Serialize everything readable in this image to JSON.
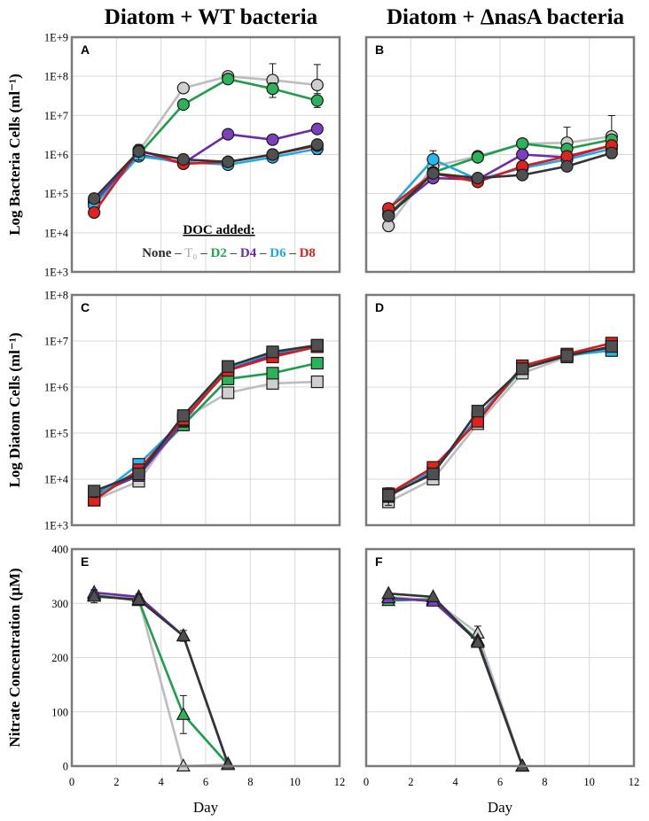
{
  "figure": {
    "column_titles": [
      "Diatom + WT bacteria",
      "Diatom + ΔnasA bacteria"
    ],
    "legend": {
      "title": "DOC added:",
      "entries": [
        {
          "label": "None",
          "color": "#2b2b2b"
        },
        {
          "label": "T₀",
          "color": "#a6a6a6",
          "plain": true
        },
        {
          "label": "D2",
          "color": "#21a84f"
        },
        {
          "label": "D4",
          "color": "#6a2da8"
        },
        {
          "label": "D6",
          "color": "#1fa9e1"
        },
        {
          "label": "D8",
          "color": "#e0221f"
        }
      ],
      "separator": " – "
    },
    "series_colors": {
      "None": {
        "line": "#333333",
        "fill": "#505050"
      },
      "T0": {
        "line": "#bdbdbd",
        "fill": "#cfcfcf"
      },
      "D2": {
        "line": "#1e9e4a",
        "fill": "#2cb35a"
      },
      "D4": {
        "line": "#6a2da8",
        "fill": "#7b3fbf"
      },
      "D6": {
        "line": "#1fa9e1",
        "fill": "#2bb6ee"
      },
      "D8": {
        "line": "#d7191c",
        "fill": "#e0221f"
      }
    }
  },
  "chart_data": [
    {
      "id": "A",
      "type": "line",
      "marker": "circle",
      "yscale": "log",
      "ylabel": "Log Bacteria Cells (ml⁻¹)",
      "xlabel": "",
      "xlim": [
        0,
        12
      ],
      "ylim": [
        1000,
        1000000000
      ],
      "yticklabels": [
        "1E+3",
        "1E+4",
        "1E+5",
        "1E+6",
        "1E+7",
        "1E+8",
        "1E+9"
      ],
      "xticklabels": [],
      "series": [
        {
          "name": "T0",
          "x": [
            1,
            3,
            5,
            7,
            9,
            11
          ],
          "y": [
            70000,
            1200000,
            50000000,
            100000000,
            80000000,
            60000000
          ],
          "err": [
            0,
            0,
            0,
            0,
            130000000,
            140000000
          ]
        },
        {
          "name": "D2",
          "x": [
            1,
            3,
            5,
            7,
            9,
            11
          ],
          "y": [
            60000,
            1000000,
            19000000,
            85000000,
            48000000,
            24000000
          ],
          "err": [
            0,
            0,
            0,
            0,
            20000000,
            8000000
          ]
        },
        {
          "name": "D4",
          "x": [
            1,
            3,
            5,
            7,
            9,
            11
          ],
          "y": [
            60000,
            1000000,
            600000,
            3300000,
            2400000,
            4500000
          ],
          "err": [
            0,
            0,
            0,
            0,
            0,
            0
          ]
        },
        {
          "name": "D6",
          "x": [
            1,
            3,
            5,
            7,
            9,
            11
          ],
          "y": [
            50000,
            900000,
            650000,
            550000,
            850000,
            1400000
          ],
          "err": [
            0,
            0,
            0,
            0,
            0,
            400000
          ]
        },
        {
          "name": "D8",
          "x": [
            1,
            3,
            5,
            7,
            9,
            11
          ],
          "y": [
            33000,
            1300000,
            580000,
            650000,
            1000000,
            1700000
          ],
          "err": [
            0,
            0,
            0,
            0,
            0,
            0
          ]
        },
        {
          "name": "None",
          "x": [
            1,
            3,
            5,
            7,
            9,
            11
          ],
          "y": [
            75000,
            1200000,
            750000,
            650000,
            1000000,
            1800000
          ],
          "err": [
            0,
            600000,
            0,
            0,
            0,
            0
          ]
        }
      ]
    },
    {
      "id": "B",
      "type": "line",
      "marker": "circle",
      "yscale": "log",
      "ylabel": "",
      "xlabel": "",
      "xlim": [
        0,
        12
      ],
      "ylim": [
        1000,
        1000000000
      ],
      "yticklabels": [],
      "xticklabels": [],
      "series": [
        {
          "name": "T0",
          "x": [
            1,
            3,
            5,
            7,
            9,
            11
          ],
          "y": [
            15000,
            500000,
            900000,
            1900000,
            2000000,
            2900000
          ],
          "err": [
            4000,
            0,
            0,
            0,
            3000000,
            7000000
          ]
        },
        {
          "name": "D2",
          "x": [
            1,
            3,
            5,
            7,
            9,
            11
          ],
          "y": [
            30000,
            350000,
            850000,
            1900000,
            1400000,
            2400000
          ],
          "err": [
            0,
            0,
            0,
            0,
            0,
            0
          ]
        },
        {
          "name": "D4",
          "x": [
            1,
            3,
            5,
            7,
            9,
            11
          ],
          "y": [
            30000,
            250000,
            230000,
            1000000,
            850000,
            1700000
          ],
          "err": [
            0,
            0,
            0,
            0,
            0,
            0
          ]
        },
        {
          "name": "D6",
          "x": [
            1,
            3,
            5,
            7,
            9,
            11
          ],
          "y": [
            40000,
            750000,
            230000,
            450000,
            750000,
            1400000
          ],
          "err": [
            0,
            500000,
            0,
            0,
            0,
            0
          ]
        },
        {
          "name": "D8",
          "x": [
            1,
            3,
            5,
            7,
            9,
            11
          ],
          "y": [
            42000,
            330000,
            200000,
            500000,
            900000,
            1700000
          ],
          "err": [
            0,
            0,
            0,
            0,
            0,
            0
          ]
        },
        {
          "name": "None",
          "x": [
            1,
            3,
            5,
            7,
            9,
            11
          ],
          "y": [
            27000,
            330000,
            250000,
            300000,
            500000,
            1100000
          ],
          "err": [
            0,
            0,
            0,
            0,
            0,
            300000
          ]
        }
      ]
    },
    {
      "id": "C",
      "type": "line",
      "marker": "square",
      "yscale": "log",
      "ylabel": "Log Diatom Cells (ml⁻¹)",
      "xlabel": "",
      "xlim": [
        0,
        12
      ],
      "ylim": [
        1000,
        100000000
      ],
      "yticklabels": [
        "1E+3",
        "1E+4",
        "1E+5",
        "1E+6",
        "1E+7",
        "1E+8"
      ],
      "xticklabels": [],
      "series": [
        {
          "name": "T0",
          "x": [
            1,
            3,
            5,
            7,
            9,
            11
          ],
          "y": [
            3500,
            9000,
            200000,
            750000,
            1200000,
            1300000
          ],
          "err": [
            0,
            2000,
            0,
            0,
            0,
            0
          ]
        },
        {
          "name": "D2",
          "x": [
            1,
            3,
            5,
            7,
            9,
            11
          ],
          "y": [
            4500,
            15000,
            150000,
            1500000,
            2000000,
            3300000
          ],
          "err": [
            0,
            0,
            0,
            0,
            0,
            0
          ]
        },
        {
          "name": "D4",
          "x": [
            1,
            3,
            5,
            7,
            9,
            11
          ],
          "y": [
            4500,
            12000,
            180000,
            2500000,
            5000000,
            8000000
          ],
          "err": [
            0,
            0,
            0,
            0,
            0,
            0
          ]
        },
        {
          "name": "D6",
          "x": [
            1,
            3,
            5,
            7,
            9,
            11
          ],
          "y": [
            3800,
            21000,
            190000,
            2600000,
            5500000,
            7800000
          ],
          "err": [
            0,
            0,
            0,
            0,
            0,
            0
          ]
        },
        {
          "name": "D8",
          "x": [
            1,
            3,
            5,
            7,
            9,
            11
          ],
          "y": [
            3500,
            16000,
            200000,
            2300000,
            4500000,
            7500000
          ],
          "err": [
            0,
            0,
            0,
            0,
            0,
            0
          ]
        },
        {
          "name": "None",
          "x": [
            1,
            3,
            5,
            7,
            9,
            11
          ],
          "y": [
            5500,
            13000,
            240000,
            2800000,
            5800000,
            8100000
          ],
          "err": [
            1500,
            0,
            0,
            0,
            0,
            0
          ]
        }
      ]
    },
    {
      "id": "D",
      "type": "line",
      "marker": "square",
      "yscale": "log",
      "ylabel": "",
      "xlabel": "",
      "xlim": [
        0,
        12
      ],
      "ylim": [
        1000,
        100000000
      ],
      "yticklabels": [],
      "xticklabels": [],
      "series": [
        {
          "name": "T0",
          "x": [
            1,
            3,
            5,
            7,
            9,
            11
          ],
          "y": [
            3200,
            10000,
            160000,
            2000000,
            4500000,
            7000000
          ],
          "err": [
            0,
            0,
            0,
            0,
            0,
            0
          ]
        },
        {
          "name": "D2",
          "x": [
            1,
            3,
            5,
            7,
            9,
            11
          ],
          "y": [
            4200,
            15000,
            200000,
            2500000,
            4800000,
            7500000
          ],
          "err": [
            0,
            0,
            0,
            0,
            0,
            0
          ]
        },
        {
          "name": "D4",
          "x": [
            1,
            3,
            5,
            7,
            9,
            11
          ],
          "y": [
            4300,
            14000,
            220000,
            2600000,
            4900000,
            7200000
          ],
          "err": [
            0,
            0,
            0,
            0,
            0,
            0
          ]
        },
        {
          "name": "D6",
          "x": [
            1,
            3,
            5,
            7,
            9,
            11
          ],
          "y": [
            4400,
            16000,
            210000,
            2600000,
            4900000,
            6200000
          ],
          "err": [
            0,
            0,
            0,
            0,
            0,
            0
          ]
        },
        {
          "name": "D8",
          "x": [
            1,
            3,
            5,
            7,
            9,
            11
          ],
          "y": [
            4800,
            18000,
            180000,
            2900000,
            5200000,
            9000000
          ],
          "err": [
            0,
            0,
            0,
            0,
            0,
            0
          ]
        },
        {
          "name": "None",
          "x": [
            1,
            3,
            5,
            7,
            9,
            11
          ],
          "y": [
            4500,
            13000,
            300000,
            2500000,
            4800000,
            7600000
          ],
          "err": [
            2000,
            0,
            0,
            0,
            0,
            0
          ]
        }
      ]
    },
    {
      "id": "E",
      "type": "line",
      "marker": "triangle",
      "yscale": "linear",
      "ylabel": "Nitrate Concentration (µM)",
      "xlabel": "Day",
      "xlim": [
        0,
        12
      ],
      "ylim": [
        0,
        400
      ],
      "yticklabels": [
        "0",
        "100",
        "200",
        "300",
        "400"
      ],
      "xticklabels": [
        "0",
        "2",
        "4",
        "6",
        "8",
        "10",
        "12"
      ],
      "series": [
        {
          "name": "T0",
          "x": [
            1,
            3,
            5,
            7
          ],
          "y": [
            318,
            308,
            0,
            3
          ],
          "err": [
            0,
            0,
            0,
            0
          ]
        },
        {
          "name": "D2",
          "x": [
            1,
            3,
            5,
            7
          ],
          "y": [
            315,
            305,
            95,
            3
          ],
          "err": [
            0,
            0,
            35,
            0
          ]
        },
        {
          "name": "D4",
          "x": [
            1,
            3,
            5,
            7
          ],
          "y": [
            320,
            312,
            240,
            4
          ],
          "err": [
            0,
            0,
            0,
            0
          ]
        },
        {
          "name": "None",
          "x": [
            1,
            3,
            5,
            7
          ],
          "y": [
            313,
            307,
            240,
            3
          ],
          "err": [
            12,
            10,
            10,
            0
          ]
        }
      ]
    },
    {
      "id": "F",
      "type": "line",
      "marker": "triangle",
      "yscale": "linear",
      "ylabel": "",
      "xlabel": "Day",
      "xlim": [
        0,
        12
      ],
      "ylim": [
        0,
        400
      ],
      "yticklabels": [],
      "xticklabels": [
        "0",
        "2",
        "4",
        "6",
        "8",
        "10",
        "12"
      ],
      "series": [
        {
          "name": "T0",
          "x": [
            1,
            3,
            5,
            7
          ],
          "y": [
            312,
            306,
            245,
            0
          ],
          "err": [
            0,
            0,
            13,
            0
          ]
        },
        {
          "name": "D2",
          "x": [
            1,
            3,
            5,
            7
          ],
          "y": [
            305,
            308,
            232,
            0
          ],
          "err": [
            0,
            0,
            0,
            0
          ]
        },
        {
          "name": "D4",
          "x": [
            1,
            3,
            5,
            7
          ],
          "y": [
            310,
            304,
            230,
            0
          ],
          "err": [
            0,
            0,
            0,
            0
          ]
        },
        {
          "name": "None",
          "x": [
            1,
            3,
            5,
            7
          ],
          "y": [
            318,
            312,
            228,
            0
          ],
          "err": [
            0,
            0,
            0,
            0
          ]
        }
      ]
    }
  ]
}
